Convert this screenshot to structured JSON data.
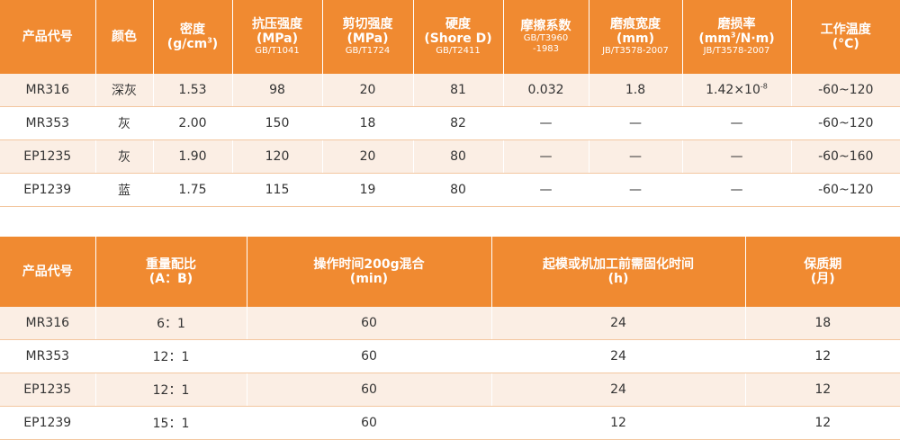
{
  "table1": {
    "headers": [
      {
        "main": "产品代号",
        "sub": ""
      },
      {
        "main": "颜色",
        "sub": ""
      },
      {
        "main": "密度",
        "main2_pre": "(g/cm",
        "main2_sup": "3",
        "main2_post": ")",
        "sub": ""
      },
      {
        "main": "抗压强度",
        "main2": "(MPa)",
        "sub": "GB/T1041"
      },
      {
        "main": "剪切强度",
        "main2": "(MPa)",
        "sub": "GB/T1724"
      },
      {
        "main": "硬度",
        "main2": "(Shore D)",
        "sub": "GB/T2411"
      },
      {
        "main": "摩擦系数",
        "sub": "GB/T3960",
        "sub2": "-1983"
      },
      {
        "main": "磨痕宽度",
        "main2": "(mm)",
        "sub": "JB/T3578-2007"
      },
      {
        "main": "磨损率",
        "main2_pre": "(mm",
        "main2_sup": "3",
        "main2_post": "/N·m)",
        "sub": "JB/T3578-2007"
      },
      {
        "main": "工作温度",
        "main2": "(°C)",
        "sub": ""
      }
    ],
    "rows": [
      {
        "code": "MR316",
        "color": "深灰",
        "density": "1.53",
        "compressive": "98",
        "shear": "20",
        "hardness": "81",
        "friction": "0.032",
        "wear_width": "1.8",
        "wear_rate_base": "1.42×10",
        "wear_rate_exp": "-8",
        "temp": "-60~120"
      },
      {
        "code": "MR353",
        "color": "灰",
        "density": "2.00",
        "compressive": "150",
        "shear": "18",
        "hardness": "82",
        "friction": "—",
        "wear_width": "—",
        "wear_rate_base": "—",
        "wear_rate_exp": "",
        "temp": "-60~120"
      },
      {
        "code": "EP1235",
        "color": "灰",
        "density": "1.90",
        "compressive": "120",
        "shear": "20",
        "hardness": "80",
        "friction": "—",
        "wear_width": "—",
        "wear_rate_base": "—",
        "wear_rate_exp": "",
        "temp": "-60~160"
      },
      {
        "code": "EP1239",
        "color": "蓝",
        "density": "1.75",
        "compressive": "115",
        "shear": "19",
        "hardness": "80",
        "friction": "—",
        "wear_width": "—",
        "wear_rate_base": "—",
        "wear_rate_exp": "",
        "temp": "-60~120"
      }
    ]
  },
  "table2": {
    "headers": [
      {
        "main": "产品代号",
        "main2": ""
      },
      {
        "main": "重量配比",
        "main2": "(A：B)"
      },
      {
        "main": "操作时间200g混合",
        "main2": "(min)"
      },
      {
        "main": "起模或机加工前需固化时间",
        "main2": "(h)"
      },
      {
        "main": "保质期",
        "main2": "(月)"
      }
    ],
    "rows": [
      {
        "code": "MR316",
        "ratio": "6：1",
        "work_time": "60",
        "cure_time": "24",
        "shelf_life": "18"
      },
      {
        "code": "MR353",
        "ratio": "12：1",
        "work_time": "60",
        "cure_time": "24",
        "shelf_life": "12"
      },
      {
        "code": "EP1235",
        "ratio": "12：1",
        "work_time": "60",
        "cure_time": "24",
        "shelf_life": "12"
      },
      {
        "code": "EP1239",
        "ratio": "15：1",
        "work_time": "60",
        "cure_time": "12",
        "shelf_life": "12"
      }
    ]
  }
}
